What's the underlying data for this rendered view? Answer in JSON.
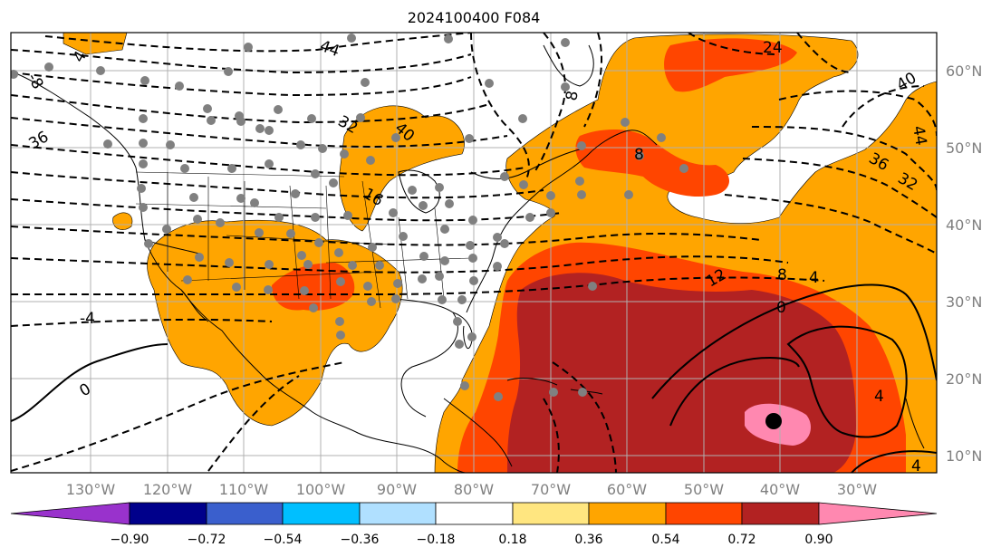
{
  "title": "2024100400 F084",
  "axes": {
    "lon_labels": [
      "130°W",
      "120°W",
      "110°W",
      "100°W",
      "90°W",
      "80°W",
      "70°W",
      "60°W",
      "50°W",
      "40°W",
      "30°W"
    ],
    "lat_labels": [
      "60°N",
      "50°N",
      "40°N",
      "30°N",
      "20°N",
      "10°N"
    ]
  },
  "colorbar": {
    "ticks": [
      "−0.90",
      "−0.72",
      "−0.54",
      "−0.36",
      "−0.18",
      "0.18",
      "0.36",
      "0.54",
      "0.72",
      "0.90"
    ],
    "colors": [
      "#9932cc",
      "#00008b",
      "#3a5fcd",
      "#00bfff",
      "#b0e0ff",
      "#ffffff",
      "#ffe680",
      "#ffa500",
      "#ff4500",
      "#b22222",
      "#ff88b0"
    ]
  },
  "contour_labels": [
    "44",
    "40",
    "36",
    "32",
    "16",
    "12",
    "8",
    "4",
    "0",
    "-4",
    "4",
    "36",
    "32",
    "40",
    "44",
    "8",
    "4",
    "0",
    "4",
    "24",
    "8",
    "-8"
  ],
  "marker": "storm-center-dot"
}
